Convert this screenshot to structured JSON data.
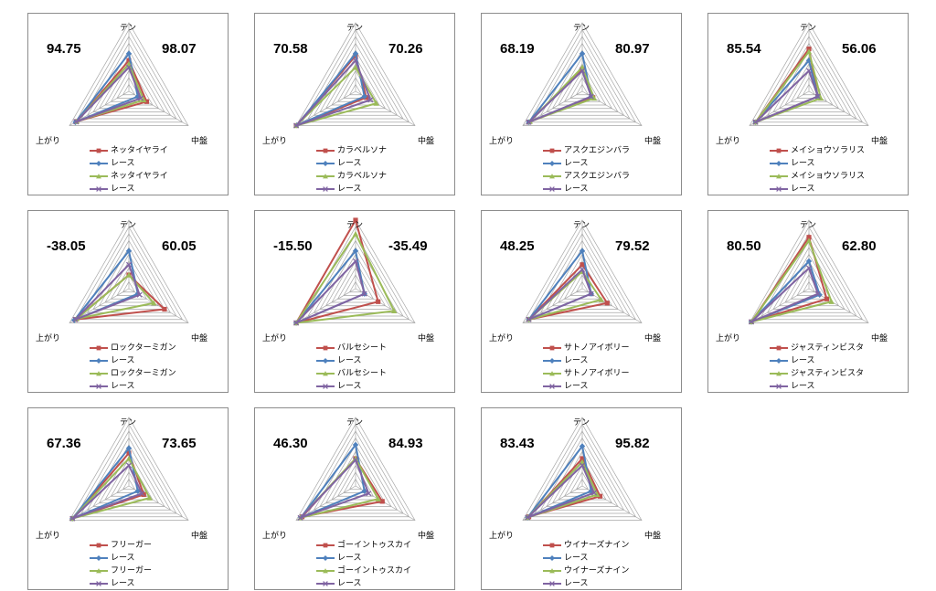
{
  "axes": [
    "テン",
    "中盤",
    "上がり"
  ],
  "series_styles": [
    {
      "color": "#c0504d",
      "marker": "square"
    },
    {
      "color": "#4f81bd",
      "marker": "diamond"
    },
    {
      "color": "#9bbb59",
      "marker": "triangle"
    },
    {
      "color": "#8064a2",
      "marker": "x"
    }
  ],
  "chart_data": [
    {
      "type": "radar",
      "scores": [
        "94.75",
        "98.07"
      ],
      "rmax": 100,
      "series": [
        {
          "name": "ネッタイヤライ",
          "values": [
            45,
            30,
            88
          ]
        },
        {
          "name": "レース",
          "values": [
            55,
            15,
            90
          ]
        },
        {
          "name": "ネッタイヤライ",
          "values": [
            40,
            25,
            88
          ]
        },
        {
          "name": "レース",
          "values": [
            35,
            20,
            89
          ]
        }
      ]
    },
    {
      "type": "radar",
      "scores": [
        "70.58",
        "70.26"
      ],
      "rmax": 100,
      "series": [
        {
          "name": "カラベルソナ",
          "values": [
            52,
            18,
            100
          ]
        },
        {
          "name": "レース",
          "values": [
            55,
            15,
            99
          ]
        },
        {
          "name": "カラベルソナ",
          "values": [
            35,
            35,
            100
          ]
        },
        {
          "name": "レース",
          "values": [
            45,
            25,
            100
          ]
        }
      ]
    },
    {
      "type": "radar",
      "scores": [
        "68.19",
        "80.97"
      ],
      "rmax": 100,
      "series": [
        {
          "name": "アスクエジンバラ",
          "values": [
            32,
            18,
            90
          ]
        },
        {
          "name": "レース",
          "values": [
            55,
            15,
            90
          ]
        },
        {
          "name": "アスクエジンバラ",
          "values": [
            35,
            20,
            88
          ]
        },
        {
          "name": "レース",
          "values": [
            30,
            15,
            90
          ]
        }
      ]
    },
    {
      "type": "radar",
      "scores": [
        "85.54",
        "56.06"
      ],
      "rmax": 100,
      "series": [
        {
          "name": "メイショウソラリス",
          "values": [
            62,
            15,
            90
          ]
        },
        {
          "name": "レース",
          "values": [
            45,
            15,
            90
          ]
        },
        {
          "name": "メイショウソラリス",
          "values": [
            58,
            20,
            90
          ]
        },
        {
          "name": "レース",
          "values": [
            30,
            15,
            90
          ]
        }
      ]
    },
    {
      "type": "radar",
      "scores": [
        "-38.05",
        "60.05"
      ],
      "rmax": 100,
      "series": [
        {
          "name": "ロックターミガン",
          "values": [
            20,
            60,
            90
          ]
        },
        {
          "name": "レース",
          "values": [
            55,
            15,
            92
          ]
        },
        {
          "name": "ロックターミガン",
          "values": [
            20,
            42,
            88
          ]
        },
        {
          "name": "レース",
          "values": [
            35,
            18,
            90
          ]
        }
      ]
    },
    {
      "type": "radar",
      "scores": [
        "-15.50",
        "-35.49"
      ],
      "rmax": 100,
      "series": [
        {
          "name": "バルセシート",
          "values": [
            100,
            38,
            100
          ]
        },
        {
          "name": "レース",
          "values": [
            55,
            15,
            100
          ]
        },
        {
          "name": "バルセシート",
          "values": [
            80,
            65,
            100
          ]
        },
        {
          "name": "レース",
          "values": [
            40,
            15,
            100
          ]
        }
      ]
    },
    {
      "type": "radar",
      "scores": [
        "48.25",
        "79.52"
      ],
      "rmax": 100,
      "series": [
        {
          "name": "サトノアイボリー",
          "values": [
            35,
            42,
            90
          ]
        },
        {
          "name": "レース",
          "values": [
            55,
            15,
            90
          ]
        },
        {
          "name": "サトノアイボリー",
          "values": [
            25,
            32,
            90
          ]
        },
        {
          "name": "レース",
          "values": [
            28,
            15,
            90
          ]
        }
      ]
    },
    {
      "type": "radar",
      "scores": [
        "80.50",
        "62.80"
      ],
      "rmax": 100,
      "series": [
        {
          "name": "ジャスティンビスタ",
          "values": [
            75,
            30,
            97
          ]
        },
        {
          "name": "レース",
          "values": [
            40,
            18,
            97
          ]
        },
        {
          "name": "ジャスティンビスタ",
          "values": [
            70,
            38,
            97
          ]
        },
        {
          "name": "レース",
          "values": [
            30,
            15,
            97
          ]
        }
      ]
    },
    {
      "type": "radar",
      "scores": [
        "67.36",
        "73.65"
      ],
      "rmax": 100,
      "series": [
        {
          "name": "フリーガー",
          "values": [
            48,
            25,
            95
          ]
        },
        {
          "name": "レース",
          "values": [
            55,
            15,
            95
          ]
        },
        {
          "name": "フリーガー",
          "values": [
            40,
            35,
            95
          ]
        },
        {
          "name": "レース",
          "values": [
            30,
            22,
            95
          ]
        }
      ]
    },
    {
      "type": "radar",
      "scores": [
        "46.30",
        "84.93"
      ],
      "rmax": 100,
      "series": [
        {
          "name": "ゴーイントゥスカイ",
          "values": [
            40,
            45,
            90
          ]
        },
        {
          "name": "レース",
          "values": [
            60,
            15,
            92
          ]
        },
        {
          "name": "ゴーイントゥスカイ",
          "values": [
            40,
            38,
            93
          ]
        },
        {
          "name": "レース",
          "values": [
            38,
            22,
            93
          ]
        }
      ]
    },
    {
      "type": "radar",
      "scores": [
        "83.43",
        "95.82"
      ],
      "rmax": 100,
      "series": [
        {
          "name": "ウイナーズナイン",
          "values": [
            40,
            30,
            90
          ]
        },
        {
          "name": "レース",
          "values": [
            58,
            15,
            92
          ]
        },
        {
          "name": "ウイナーズナイン",
          "values": [
            35,
            25,
            92
          ]
        },
        {
          "name": "レース",
          "values": [
            30,
            20,
            92
          ]
        }
      ]
    }
  ]
}
